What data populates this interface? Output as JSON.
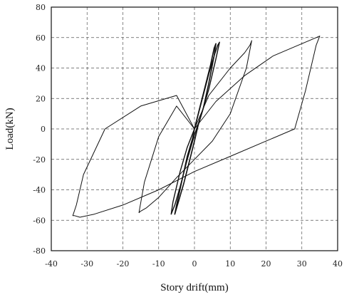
{
  "chart_data": {
    "type": "line",
    "title": "",
    "xlabel": "Story drift(mm)",
    "ylabel": "Load(kN)",
    "xlim": [
      -40,
      40
    ],
    "ylim": [
      -80,
      80
    ],
    "xticks": [
      "-40",
      "-30",
      "-20",
      "-10",
      "0",
      "10",
      "20",
      "30",
      "40"
    ],
    "yticks": [
      "80",
      "60",
      "40",
      "20",
      "0",
      "-20",
      "-40",
      "-60",
      "-80"
    ],
    "grid": true,
    "legend": "none",
    "series": [
      {
        "x": [
          0,
          1.5,
          3,
          4.5,
          5.5,
          6,
          5.5,
          4,
          2.5,
          1,
          0,
          -1.5,
          -3,
          -4.5,
          -5.5,
          -5,
          -3.5,
          -2,
          -0.5,
          0
        ],
        "y": [
          0,
          14,
          28,
          42,
          53,
          56,
          48,
          30,
          14,
          2,
          -8,
          -22,
          -36,
          -48,
          -56,
          -50,
          -34,
          -18,
          -6,
          0
        ]
      },
      {
        "x": [
          0,
          2,
          4,
          5.5,
          6.5,
          7,
          6,
          4,
          2,
          0,
          -2,
          -4,
          -5.5,
          -6.5,
          -6,
          -4,
          -2,
          0
        ],
        "y": [
          0,
          18,
          36,
          48,
          55,
          57,
          46,
          26,
          10,
          -4,
          -20,
          -38,
          -50,
          -56,
          -48,
          -28,
          -12,
          0
        ]
      },
      {
        "x": [
          0,
          4,
          10,
          14,
          15.5,
          16,
          14.5,
          10,
          5,
          0,
          -5,
          -10,
          -13.5,
          -15,
          -15.5,
          -14,
          -10,
          -5,
          0
        ],
        "y": [
          0,
          22,
          40,
          50,
          55,
          58,
          40,
          10,
          -8,
          -20,
          -32,
          -45,
          -52,
          -54,
          -55,
          -35,
          -5,
          15,
          0
        ]
      },
      {
        "x": [
          0,
          6,
          14,
          22,
          30,
          34,
          35,
          34,
          31,
          28,
          20,
          10,
          0,
          -10,
          -20,
          -28,
          -32,
          -33.5,
          -34,
          -33,
          -31,
          -25,
          -15,
          -5,
          0
        ],
        "y": [
          0,
          18,
          35,
          48,
          56,
          60,
          61,
          55,
          25,
          0,
          -8,
          -18,
          -28,
          -40,
          -50,
          -56,
          -58,
          -57,
          -57,
          -50,
          -30,
          0,
          15,
          22,
          0
        ]
      }
    ]
  }
}
